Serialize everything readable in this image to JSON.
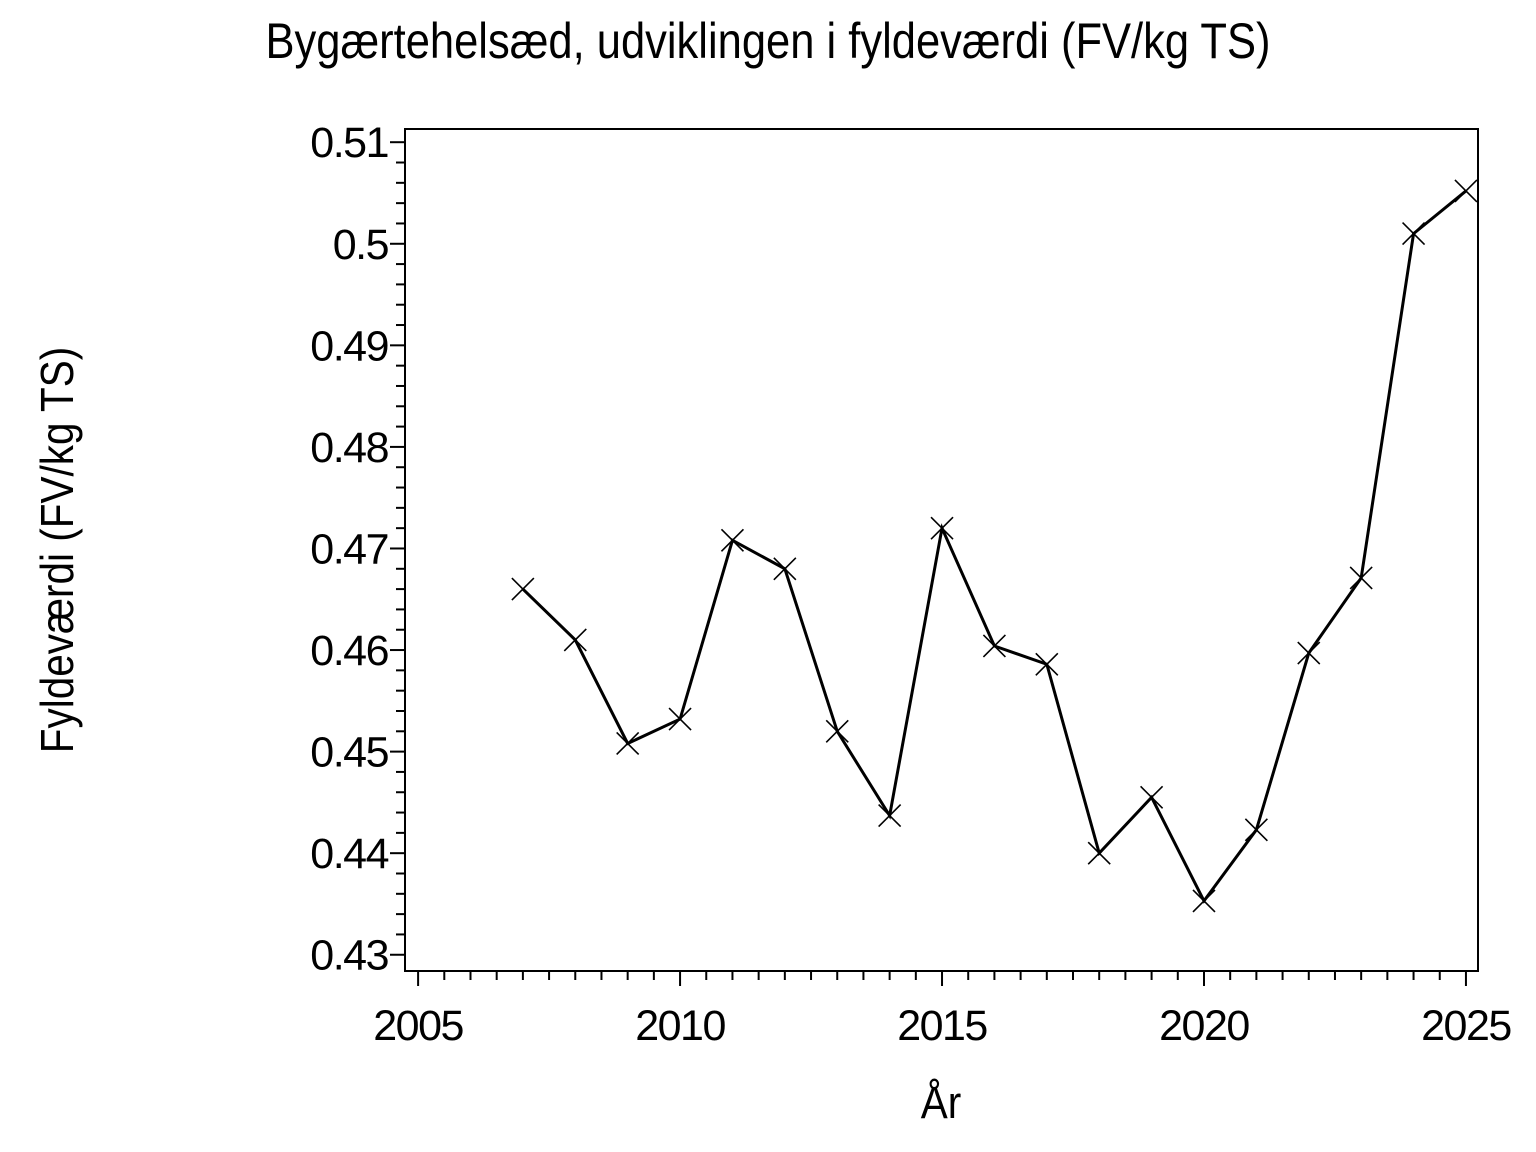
{
  "page": {
    "background": "#ffffff",
    "foreground": "#000000"
  },
  "chart_data": {
    "type": "line",
    "title": "Bygærtehelsæd, udviklingen i fyldeværdi (FV/kg TS)",
    "xlabel": "År",
    "ylabel": "Fyldeværdi (FV/kg TS)",
    "series": [
      {
        "name": "Fyldeværdi",
        "x": [
          2007,
          2008,
          2009,
          2010,
          2011,
          2012,
          2013,
          2014,
          2015,
          2016,
          2017,
          2018,
          2019,
          2020,
          2021,
          2022,
          2023,
          2024,
          2025
        ],
        "values": [
          0.466,
          0.461,
          0.4508,
          0.4532,
          0.4708,
          0.468,
          0.452,
          0.4437,
          0.472,
          0.4604,
          0.4586,
          0.44,
          0.4455,
          0.4353,
          0.4423,
          0.4597,
          0.4671,
          0.501,
          0.5052
        ]
      }
    ],
    "xlim": [
      2004.75,
      2025.23
    ],
    "ylim": [
      0.4284,
      0.5113
    ],
    "x_major_ticks": [
      {
        "value": 2005,
        "label": "2005"
      },
      {
        "value": 2010,
        "label": "2010"
      },
      {
        "value": 2015,
        "label": "2015"
      },
      {
        "value": 2020,
        "label": "2020"
      },
      {
        "value": 2025,
        "label": "2025"
      }
    ],
    "x_minor_step": 0.5,
    "y_major_ticks": [
      {
        "value": 0.51,
        "label": "0.51"
      },
      {
        "value": 0.5,
        "label": "0.5"
      },
      {
        "value": 0.49,
        "label": "0.49"
      },
      {
        "value": 0.48,
        "label": "0.48"
      },
      {
        "value": 0.47,
        "label": "0.47"
      },
      {
        "value": 0.46,
        "label": "0.46"
      },
      {
        "value": 0.45,
        "label": "0.45"
      },
      {
        "value": 0.44,
        "label": "0.44"
      },
      {
        "value": 0.43,
        "label": "0.43"
      }
    ],
    "y_minor_step": 0.002,
    "marker": "x",
    "line_color": "#000000",
    "grid": false,
    "legend": null
  }
}
